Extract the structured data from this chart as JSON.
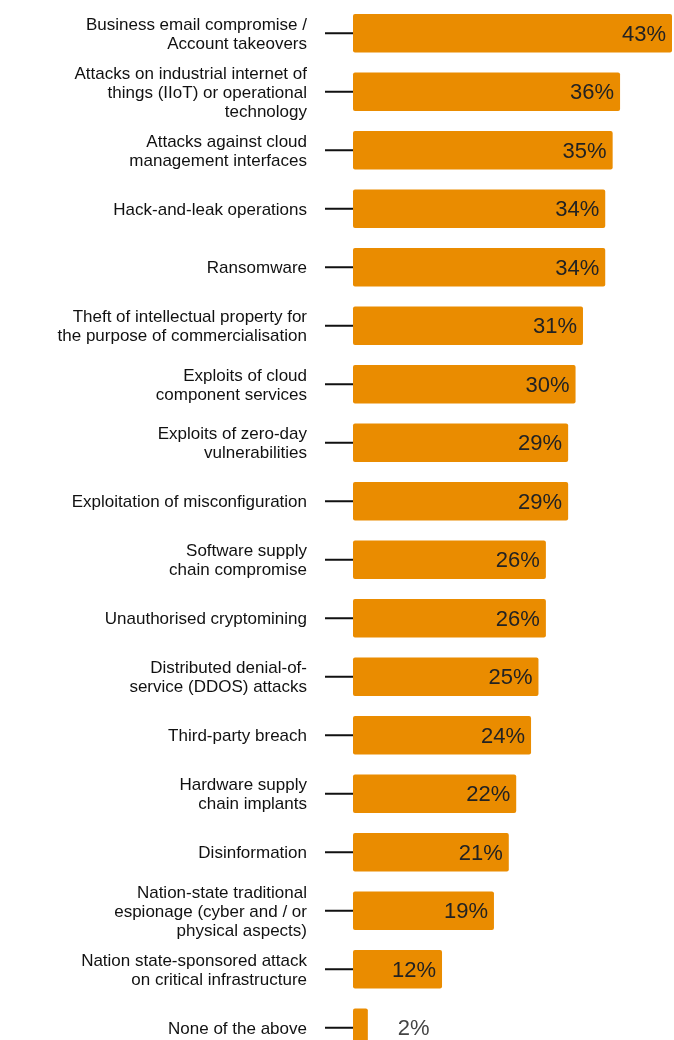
{
  "chart_data": {
    "type": "bar",
    "orientation": "horizontal",
    "data_labels": true,
    "color": "#ea8c00",
    "categories": [
      "Business email compromise /\nAccount takeovers",
      "Attacks on industrial internet of\nthings (IIoT) or operational\ntechnology",
      "Attacks against cloud\nmanagement interfaces",
      "Hack-and-leak operations",
      "Ransomware",
      "Theft of intellectual property for\nthe purpose of commercialisation",
      "Exploits of cloud\ncomponent services",
      "Exploits of zero-day\nvulnerabilities",
      "Exploitation of misconfiguration",
      "Software supply\nchain compromise",
      "Unauthorised cryptomining",
      "Distributed denial-of-\nservice (DDOS) attacks",
      "Third-party breach",
      "Hardware supply\nchain implants",
      "Disinformation",
      "Nation-state traditional\nespionage (cyber and / or\nphysical aspects)",
      "Nation state-sponsored attack\non critical infrastructure",
      "None of the above"
    ],
    "values": [
      43,
      36,
      35,
      34,
      34,
      31,
      30,
      29,
      29,
      26,
      26,
      25,
      24,
      22,
      21,
      19,
      12,
      2
    ],
    "value_labels": [
      "43%",
      "36%",
      "35%",
      "34%",
      "34%",
      "31%",
      "30%",
      "29%",
      "29%",
      "26%",
      "26%",
      "25%",
      "24%",
      "22%",
      "21%",
      "19%",
      "12%",
      "2%"
    ]
  }
}
